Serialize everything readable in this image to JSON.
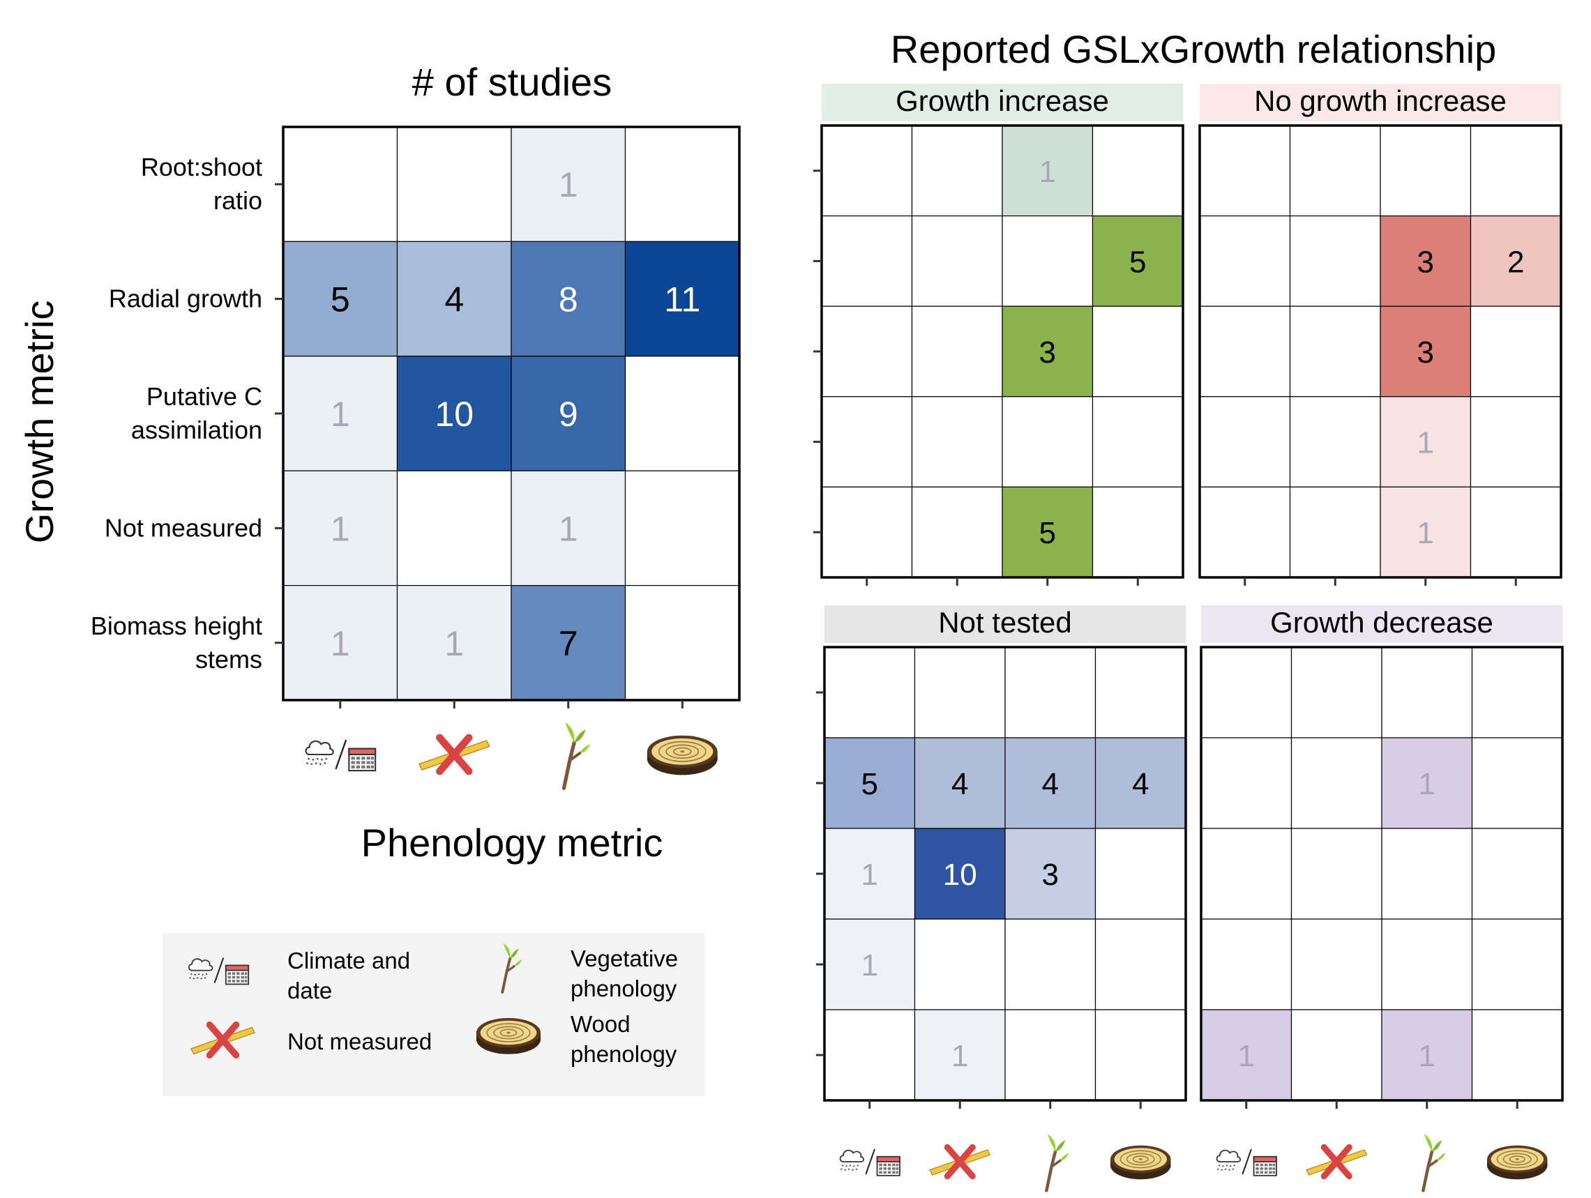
{
  "chart_data": [
    {
      "type": "heatmap",
      "title": "# of studies",
      "xlabel": "Phenology metric",
      "ylabel": "Growth metric",
      "x_categories": [
        "Climate and date",
        "Not measured",
        "Vegetative phenology",
        "Wood phenology"
      ],
      "y_categories": [
        "Root:shoot ratio",
        "Radial growth",
        "Putative C assimilation",
        "Not measured",
        "Biomass height stems"
      ],
      "y_tick_lines": [
        [
          "Root:shoot",
          "ratio"
        ],
        [
          "Radial growth"
        ],
        [
          "Putative C",
          "assimilation"
        ],
        [
          "Not measured"
        ],
        [
          "Biomass height",
          "stems"
        ]
      ],
      "values": [
        [
          null,
          null,
          1,
          null
        ],
        [
          5,
          4,
          8,
          11
        ],
        [
          1,
          10,
          9,
          null
        ],
        [
          1,
          null,
          1,
          null
        ],
        [
          1,
          1,
          7,
          null
        ]
      ],
      "color_scale": "blue"
    },
    {
      "type": "heatmap",
      "title": "Reported GSLxGrowth relationship",
      "facets": [
        {
          "name": "Growth increase",
          "color": "#8ab34e",
          "strip_color": "#e3ede8",
          "values": [
            [
              null,
              null,
              1,
              null
            ],
            [
              null,
              null,
              null,
              5
            ],
            [
              null,
              null,
              3,
              null
            ],
            [
              null,
              null,
              null,
              null
            ],
            [
              null,
              null,
              5,
              null
            ]
          ]
        },
        {
          "name": "No growth increase",
          "color": "#dc7f76",
          "strip_color": "#fae8e6",
          "values": [
            [
              null,
              null,
              null,
              null
            ],
            [
              null,
              null,
              3,
              2
            ],
            [
              null,
              null,
              3,
              null
            ],
            [
              null,
              null,
              1,
              null
            ],
            [
              null,
              null,
              1,
              null
            ]
          ]
        },
        {
          "name": "Not tested",
          "color": "#2f55a2",
          "strip_color": "#e6e6e6",
          "values": [
            [
              null,
              null,
              null,
              null
            ],
            [
              5,
              4,
              4,
              4
            ],
            [
              1,
              10,
              3,
              null
            ],
            [
              1,
              null,
              null,
              null
            ],
            [
              null,
              1,
              null,
              null
            ]
          ]
        },
        {
          "name": "Growth decrease",
          "color": "#d9cde6",
          "strip_color": "#ebe6f2",
          "values": [
            [
              null,
              null,
              null,
              null
            ],
            [
              null,
              null,
              1,
              null
            ],
            [
              null,
              null,
              null,
              null
            ],
            [
              null,
              null,
              null,
              null
            ],
            [
              1,
              null,
              1,
              null
            ]
          ]
        }
      ]
    }
  ],
  "legend": {
    "items": [
      {
        "icon": "cloud-calendar-icon",
        "lines": [
          "Climate and",
          "date"
        ]
      },
      {
        "icon": "ruler-cross-icon",
        "lines": [
          "Not measured"
        ]
      },
      {
        "icon": "twig-icon",
        "lines": [
          "Vegetative",
          "phenology"
        ]
      },
      {
        "icon": "tree-ring-icon",
        "lines": [
          "Wood",
          "phenology"
        ]
      }
    ]
  }
}
